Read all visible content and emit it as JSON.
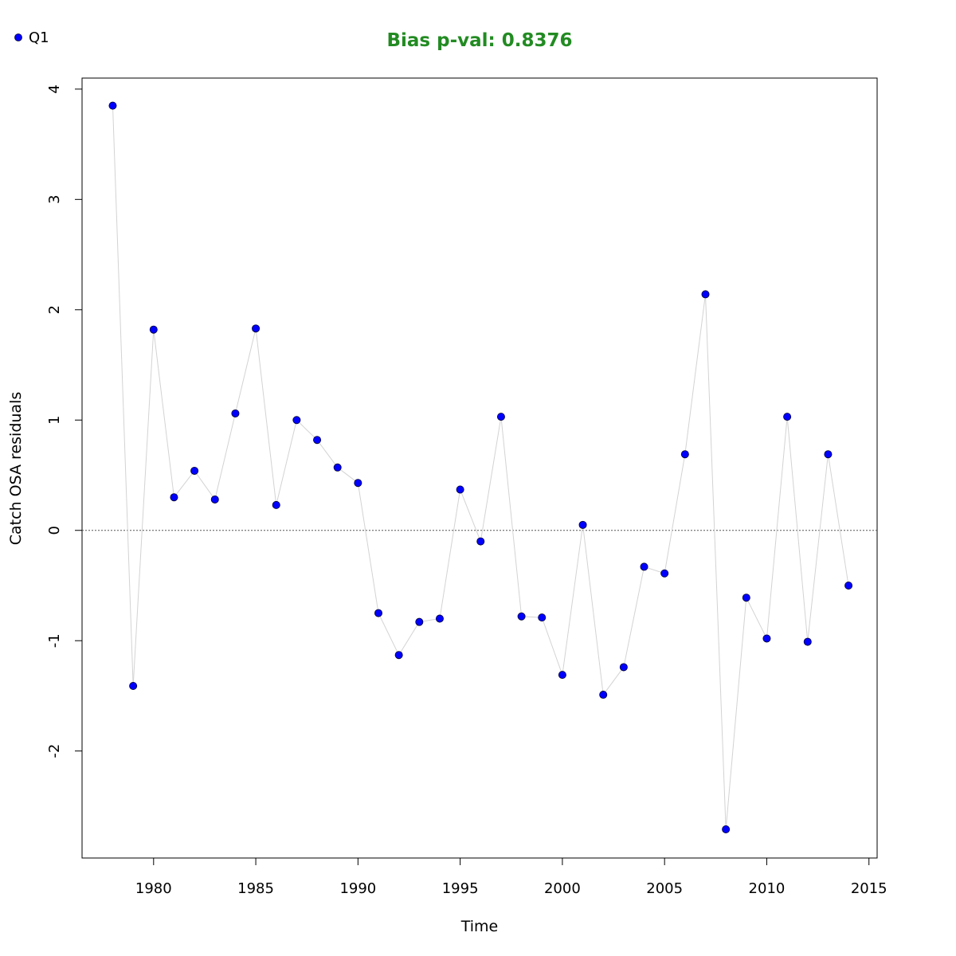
{
  "chart_data": {
    "type": "scatter",
    "title": "Bias p-val: 0.8376",
    "title_color": "#228B22",
    "xlabel": "Time",
    "ylabel": "Catch OSA residuals",
    "xlim": [
      1976.5,
      2015.4
    ],
    "ylim": [
      -2.97,
      4.1
    ],
    "xticks": [
      1980,
      1985,
      1990,
      1995,
      2000,
      2005,
      2010,
      2015
    ],
    "yticks": [
      -2,
      -1,
      0,
      1,
      2,
      3,
      4
    ],
    "xtick_labels": [
      "1980",
      "1985",
      "1990",
      "1995",
      "2000",
      "2005",
      "2010",
      "2015"
    ],
    "ytick_labels": [
      "-2",
      "-1",
      "0",
      "1",
      "2",
      "3",
      "4"
    ],
    "reference_line": 0,
    "grid": false,
    "legend": {
      "position": "top-left",
      "entries": [
        "Q1"
      ]
    },
    "point_color": "#0000FF",
    "line_color": "#D3D3D3",
    "series": [
      {
        "name": "Q1",
        "x": [
          1978,
          1979,
          1980,
          1981,
          1982,
          1983,
          1984,
          1985,
          1986,
          1987,
          1988,
          1989,
          1990,
          1991,
          1992,
          1993,
          1994,
          1995,
          1996,
          1997,
          1998,
          1999,
          2000,
          2001,
          2002,
          2003,
          2004,
          2005,
          2006,
          2007,
          2008,
          2009,
          2010,
          2011,
          2012,
          2013,
          2014
        ],
        "y": [
          3.85,
          -1.41,
          1.82,
          0.3,
          0.54,
          0.28,
          1.06,
          1.83,
          0.23,
          1.0,
          0.82,
          0.57,
          0.43,
          -0.75,
          -1.13,
          -0.83,
          -0.8,
          0.37,
          -0.1,
          1.03,
          -0.78,
          -0.79,
          -1.31,
          0.05,
          -1.49,
          -1.24,
          -0.33,
          -0.39,
          0.69,
          2.14,
          -2.71,
          -0.61,
          -0.98,
          1.03,
          -1.01,
          0.69,
          -0.5
        ]
      }
    ]
  }
}
